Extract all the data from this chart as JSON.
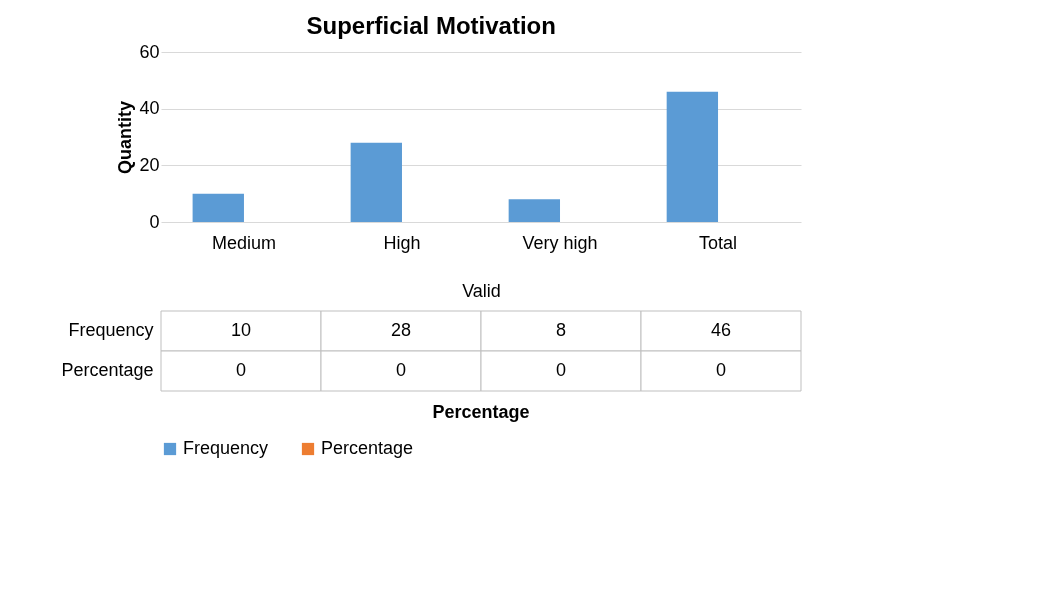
{
  "chart_data": {
    "type": "bar",
    "title": "Superficial Motivation",
    "ylabel": "Quantity",
    "annotations": [
      "Valid",
      "Percentage"
    ],
    "categories": [
      "Medium",
      "High",
      "Very high",
      "Total"
    ],
    "series": [
      {
        "name": "Frequency",
        "color": "#5b9bd5",
        "values": [
          10,
          28,
          8,
          46
        ]
      },
      {
        "name": "Percentage",
        "color": "#ed7d31",
        "values": [
          0,
          0,
          0,
          0
        ]
      }
    ],
    "ylim": [
      0,
      60
    ],
    "yticks": [
      0,
      20,
      40,
      60
    ],
    "grid": "y",
    "legend": "bottom",
    "data_labels": true
  }
}
